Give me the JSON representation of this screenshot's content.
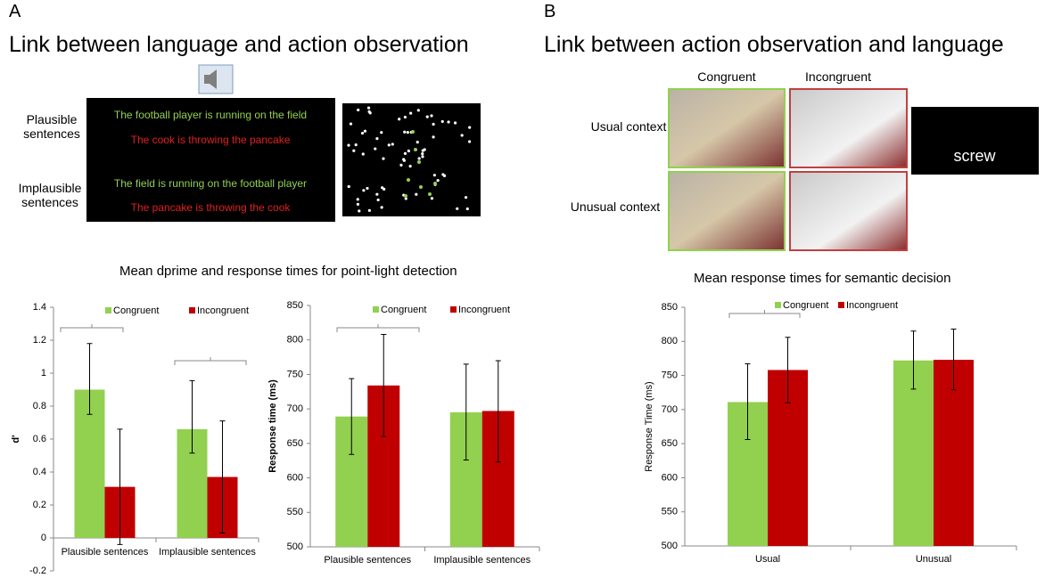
{
  "panel_a": {
    "letter": "A",
    "title": "Link between language and action observation",
    "row_labels": [
      "Plausible sentences",
      "Implausible sentences"
    ],
    "sentences": [
      {
        "text": "The football player is running on the field",
        "color": "#92d050"
      },
      {
        "text": "The cook is throwing the pancake",
        "color": "#e02020"
      },
      {
        "text": "The field is running on the football player",
        "color": "#92d050"
      },
      {
        "text": "The pancake is throwing the cook",
        "color": "#e02020"
      }
    ]
  },
  "panel_b": {
    "letter": "B",
    "title": "Link between action observation and language",
    "column_labels": [
      "Congruent",
      "Incongruent"
    ],
    "row_labels": [
      "Usual context",
      "Unusual context"
    ],
    "word": "screw"
  },
  "headings": [
    "Mean dprime and response times for point-light detection",
    "Mean response times for semantic decision"
  ],
  "chart_data": [
    {
      "type": "bar",
      "y_label": "d'",
      "categories": [
        "Plausible sentences",
        "Implausible sentences"
      ],
      "series": [
        {
          "name": "Congruent",
          "color": "#92d050",
          "values": [
            0.9,
            0.66
          ],
          "error_minus": [
            0.15,
            0.145
          ],
          "error_plus": [
            0.28,
            0.295
          ]
        },
        {
          "name": "Incongruent",
          "color": "#c00000",
          "values": [
            0.31,
            0.37
          ],
          "error_minus": [
            0.35,
            0.34
          ],
          "error_plus": [
            0.35,
            0.34
          ]
        }
      ],
      "ylim": [
        -0.2,
        1.4
      ],
      "yticks": [
        -0.2,
        0,
        0.2,
        0.4,
        0.6,
        0.8,
        1,
        1.2,
        1.4
      ],
      "legend": "top"
    },
    {
      "type": "bar",
      "y_label": "Response time (ms)",
      "categories": [
        "Plausible sentences",
        "Implausible sentences"
      ],
      "series": [
        {
          "name": "Congruent",
          "color": "#92d050",
          "values": [
            689,
            695
          ],
          "error_minus": [
            55,
            69
          ],
          "error_plus": [
            55,
            70
          ]
        },
        {
          "name": "Incongruent",
          "color": "#c00000",
          "values": [
            734,
            697
          ],
          "error_minus": [
            74,
            74
          ],
          "error_plus": [
            74,
            73
          ]
        }
      ],
      "ylim": [
        500,
        850
      ],
      "yticks": [
        500,
        550,
        600,
        650,
        700,
        750,
        800,
        850
      ],
      "legend": "top"
    },
    {
      "type": "bar",
      "y_label": "Response Time (ms)",
      "categories": [
        "Usual",
        "Unusual"
      ],
      "series": [
        {
          "name": "Congruent",
          "color": "#92d050",
          "values": [
            711,
            772
          ],
          "error_minus": [
            55,
            42
          ],
          "error_plus": [
            56,
            43
          ]
        },
        {
          "name": "Incongruent",
          "color": "#c00000",
          "values": [
            758,
            773
          ],
          "error_minus": [
            48,
            44
          ],
          "error_plus": [
            48,
            45
          ]
        }
      ],
      "ylim": [
        500,
        850
      ],
      "yticks": [
        500,
        550,
        600,
        650,
        700,
        750,
        800,
        850
      ],
      "legend": "top"
    }
  ]
}
